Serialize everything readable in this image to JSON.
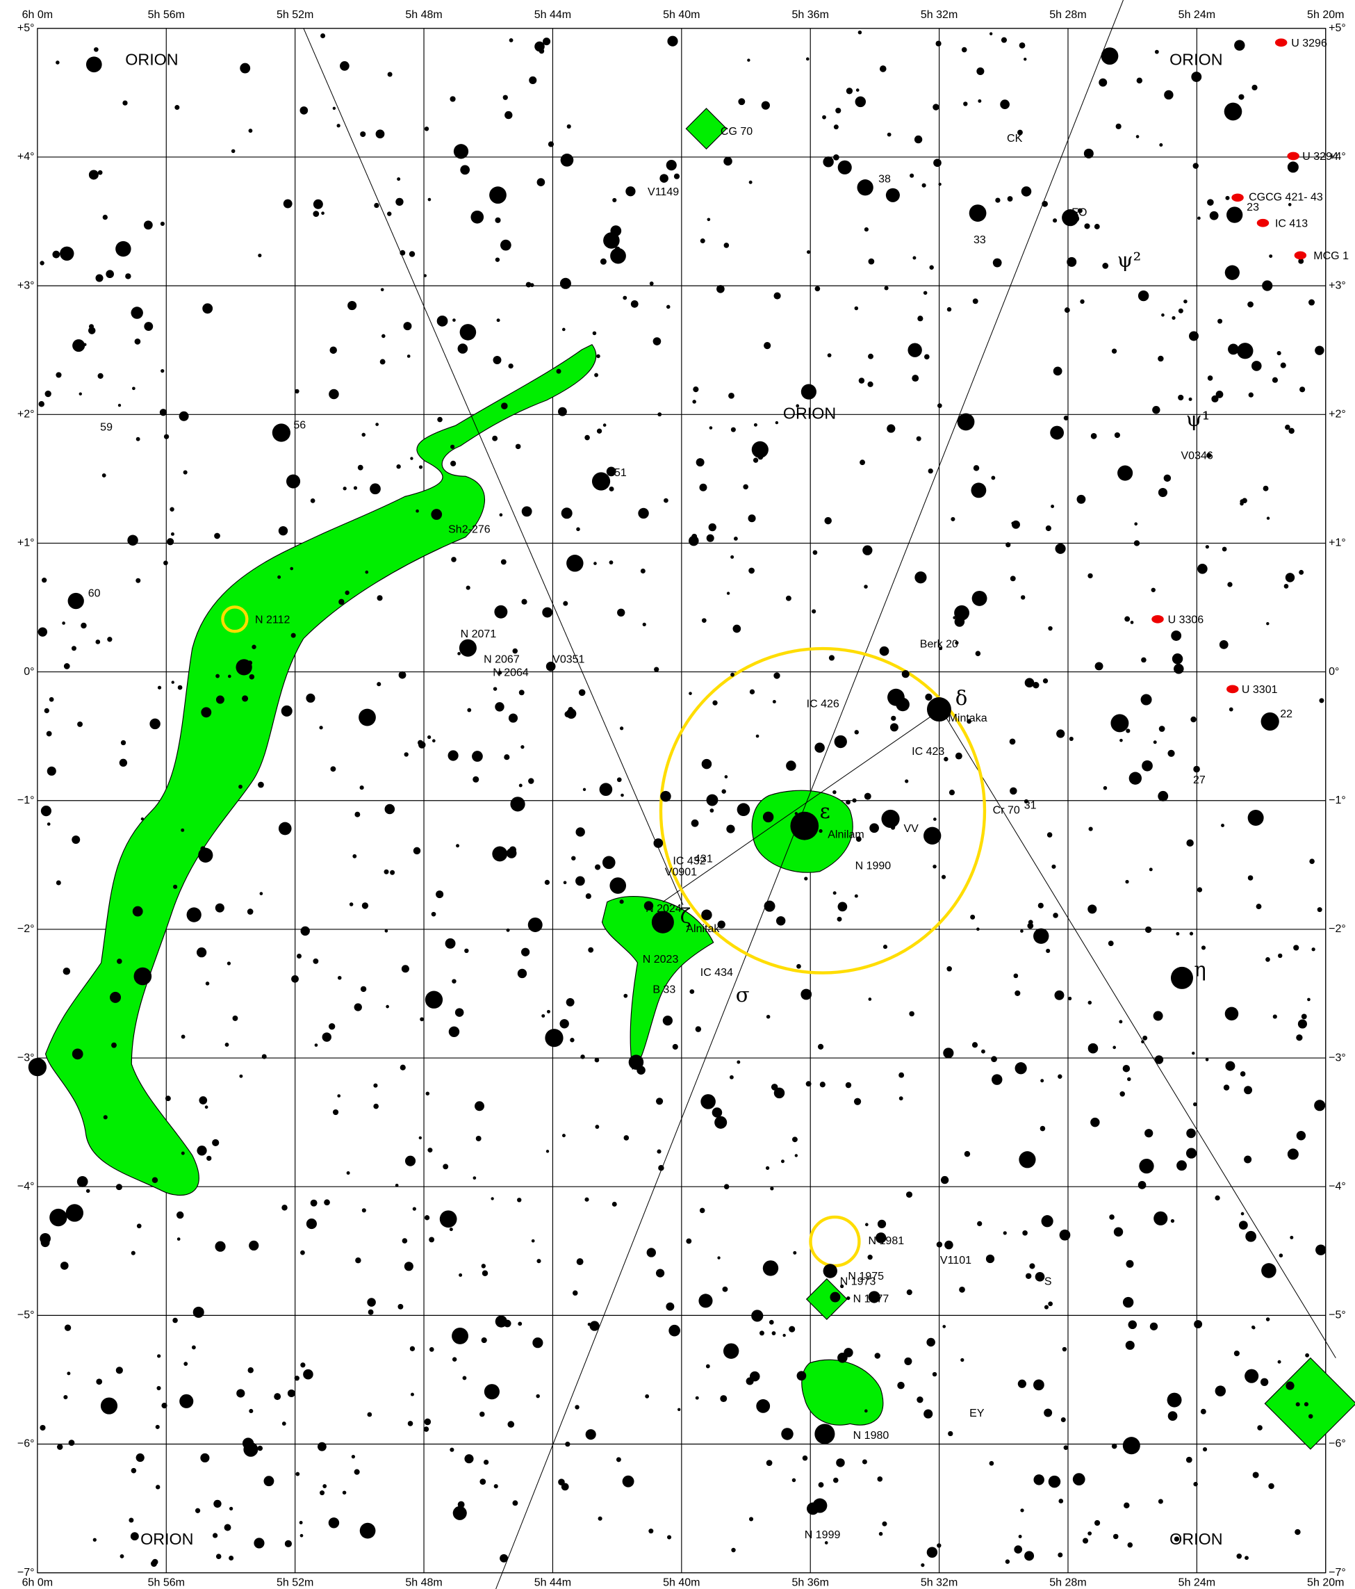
{
  "map": {
    "ra_labels_top": [
      "6h 0m",
      "5h 56m",
      "5h 52m",
      "5h 48m",
      "5h 44m",
      "5h 40m",
      "5h 36m",
      "5h 32m",
      "5h 28m",
      "5h 24m",
      "5h 20m"
    ],
    "ra_labels_bottom": [
      "6h 0m",
      "5h 56m",
      "5h 52m",
      "5h 48m",
      "5h 44m",
      "5h 40m",
      "5h 36m",
      "5h 32m",
      "5h 28m",
      "5h 24m",
      "5h 20m"
    ],
    "dec_labels_left": [
      "+5°",
      "+4°",
      "+3°",
      "+2°",
      "+1°",
      "0°",
      "−1°",
      "−2°",
      "−3°",
      "−4°",
      "−5°",
      "−6°",
      "−7°"
    ],
    "dec_labels_right": [
      "+5°",
      "+4°",
      "+3°",
      "+2°",
      "+1°",
      "0°",
      "−1°",
      "−2°",
      "−3°",
      "−4°",
      "−5°",
      "−6°",
      "−7°"
    ],
    "constellations": [
      "ORION",
      "ORION",
      "ORION",
      "ORION",
      "ORION"
    ],
    "labels": [
      "U 3296",
      "U 3294",
      "CGCG 421- 43",
      "23",
      "IC 413",
      "MCG 1",
      "CK",
      "FO",
      "33",
      "ψ²",
      "ψ¹",
      "V0346",
      "38",
      "V1149",
      "CG 70",
      "59",
      "56",
      "51",
      "60",
      "Sh2-276",
      "N 2112",
      "N 2071",
      "N 2067",
      "N 2064",
      "V0351",
      "Berk 20",
      "δ",
      "Mintaka",
      "22",
      "U 3306",
      "U 3301",
      "IC 426",
      "IC 423",
      "27",
      "ε",
      "Alnilam",
      "VV",
      "Cr 70",
      "31",
      "N 1990",
      "IC 432",
      "431",
      "V0901",
      "N 2024",
      "ζ",
      "Alnitak",
      "N 2023",
      "IC 434",
      "B 33",
      "σ",
      "η",
      "N 1981",
      "V1101",
      "N 1975",
      "N 1973",
      "N 1977",
      "N 1999",
      "EY",
      "S",
      "N 1980"
    ]
  }
}
